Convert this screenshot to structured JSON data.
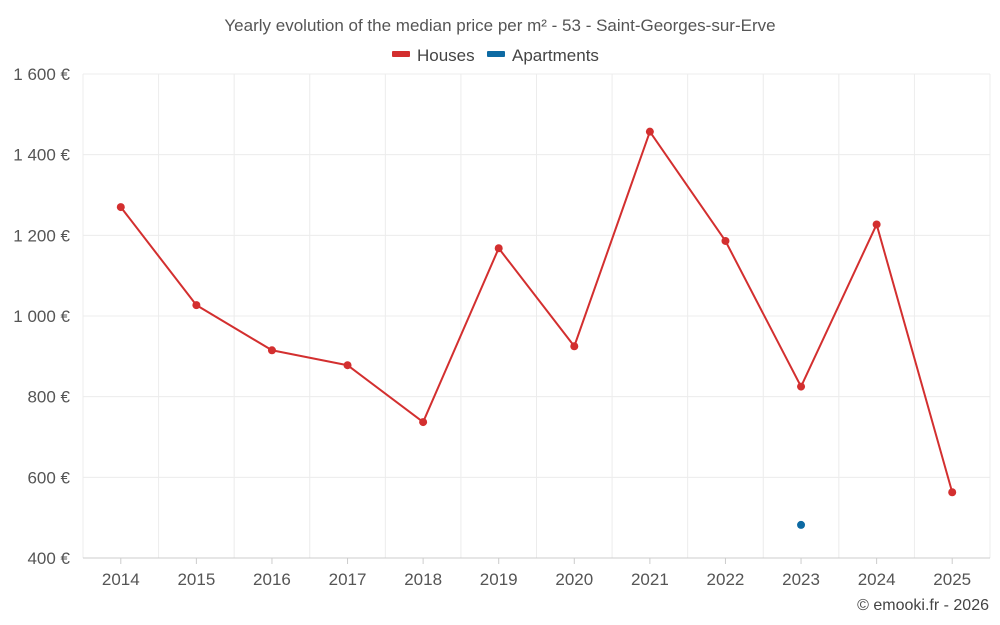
{
  "chart_data": {
    "type": "line",
    "title": "Yearly evolution of the median price per m² - 53 - Saint-Georges-sur-Erve",
    "xlabel": "",
    "ylabel": "",
    "categories": [
      "2014",
      "2015",
      "2016",
      "2017",
      "2018",
      "2019",
      "2020",
      "2021",
      "2022",
      "2023",
      "2024",
      "2025"
    ],
    "ylim": [
      400,
      1600
    ],
    "yticks": [
      400,
      600,
      800,
      1000,
      1200,
      1400,
      1600
    ],
    "ytick_labels": [
      "400 €",
      "600 €",
      "800 €",
      "1 000 €",
      "1 200 €",
      "1 400 €",
      "1 600 €"
    ],
    "grid": true,
    "legend_position": "top-center",
    "series": [
      {
        "name": "Houses",
        "color": "#d32f2f",
        "values": [
          1270,
          1027,
          915,
          878,
          737,
          1168,
          925,
          1457,
          1186,
          825,
          1227,
          563
        ]
      },
      {
        "name": "Apartments",
        "color": "#0d6aa3",
        "values": [
          null,
          null,
          null,
          null,
          null,
          null,
          null,
          null,
          null,
          482,
          null,
          null
        ]
      }
    ]
  },
  "credit": "© emooki.fr - 2026"
}
